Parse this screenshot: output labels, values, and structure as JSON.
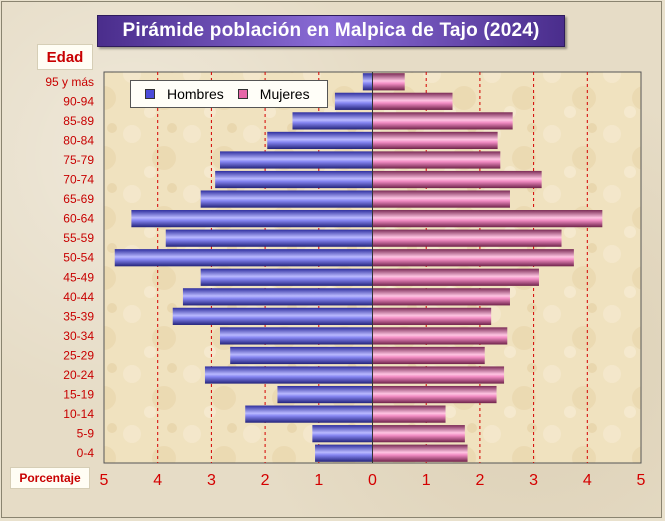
{
  "title": "Pirámide población en Malpica de Tajo (2024)",
  "chart_data": {
    "type": "bar",
    "orientation": "horizontal",
    "title": "Pirámide población en Malpica de Tajo (2024)",
    "ylabel": "Edad",
    "xlabel": "Porcentaje",
    "xlim": [
      -5,
      5
    ],
    "x_ticks": [
      "5",
      "4",
      "3",
      "2",
      "1",
      "0",
      "1",
      "2",
      "3",
      "4",
      "5"
    ],
    "categories": [
      "0-4",
      "5-9",
      "10-14",
      "15-19",
      "20-24",
      "25-29",
      "30-34",
      "35-39",
      "40-44",
      "45-49",
      "50-54",
      "55-59",
      "60-64",
      "65-69",
      "70-74",
      "75-79",
      "80-84",
      "85-89",
      "90-94",
      "95 y más"
    ],
    "series": [
      {
        "name": "Hombres",
        "color": "#6b6bff",
        "values": [
          1.07,
          1.12,
          2.37,
          1.77,
          3.12,
          2.65,
          2.84,
          3.72,
          3.53,
          3.2,
          4.8,
          3.85,
          4.49,
          3.2,
          2.93,
          2.84,
          1.96,
          1.49,
          0.7,
          0.18
        ]
      },
      {
        "name": "Mujeres",
        "color": "#ff7fbf",
        "values": [
          1.77,
          1.72,
          1.36,
          2.31,
          2.45,
          2.09,
          2.51,
          2.21,
          2.56,
          3.1,
          3.75,
          3.52,
          4.28,
          2.56,
          3.15,
          2.38,
          2.33,
          2.61,
          1.49,
          0.6
        ]
      }
    ],
    "grid": true,
    "grid_style": "vertical dashed red",
    "legend_position": "top-left"
  }
}
